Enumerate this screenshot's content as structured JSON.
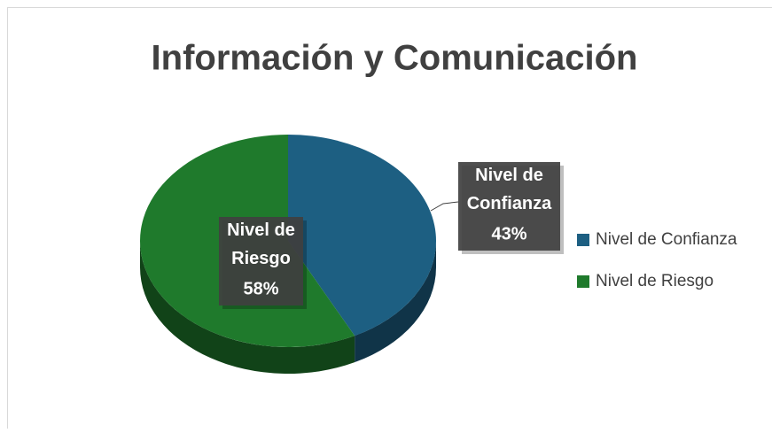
{
  "chart_data": {
    "type": "pie",
    "title": "Información y Comunicación",
    "categories": [
      "Nivel de Confianza",
      "Nivel de Riesgo"
    ],
    "values": [
      43,
      58
    ],
    "value_labels": [
      "43%",
      "58%"
    ],
    "colors": [
      "#1d5f82",
      "#1f7a2c"
    ],
    "legend": "right"
  }
}
